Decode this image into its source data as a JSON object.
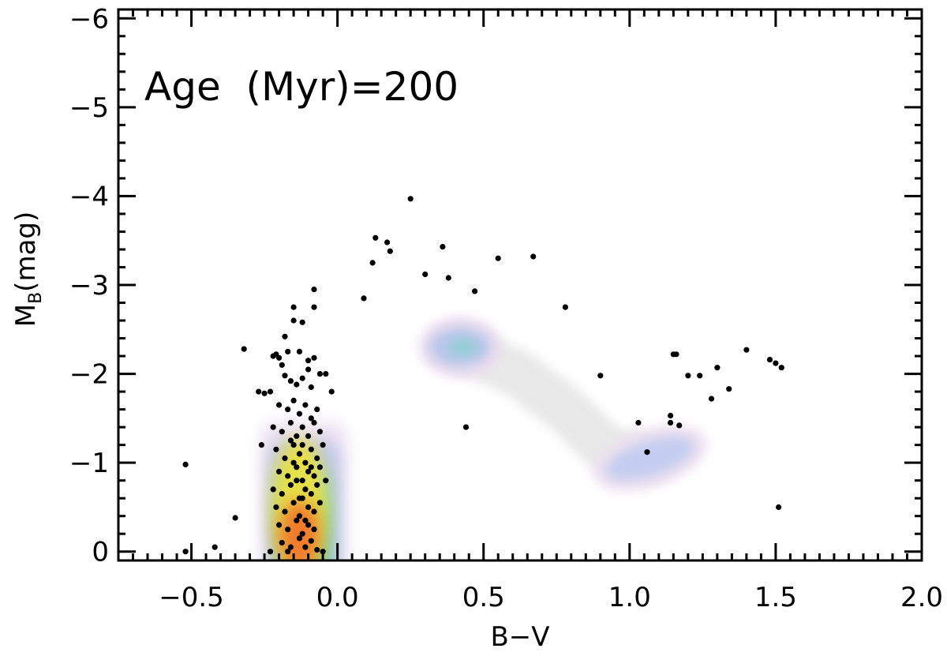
{
  "chart_data": {
    "type": "scatter",
    "title": "",
    "annotation": "Age  (Myr)=200",
    "xlabel": "B−V",
    "ylabel_main": "M",
    "ylabel_sub": "B",
    "ylabel_unit": "(mag)",
    "xlim": [
      -0.75,
      2.0
    ],
    "ylim": [
      0.1,
      -6.1
    ],
    "x_major_ticks": [
      -0.5,
      0.0,
      0.5,
      1.0,
      1.5,
      2.0
    ],
    "x_tick_labels": [
      "−0.5",
      "0.0",
      "0.5",
      "1.0",
      "1.5",
      "2.0"
    ],
    "y_major_ticks": [
      0,
      -1,
      -2,
      -3,
      -4,
      -5,
      -6
    ],
    "y_tick_labels": [
      "0",
      "−1",
      "−2",
      "−3",
      "−4",
      "−5",
      "−6"
    ],
    "density_regions": [
      {
        "name": "main-sequence",
        "x_range": [
          -0.26,
          0.03
        ],
        "y_range": [
          -1.45,
          0.1
        ],
        "peak_x": -0.13,
        "peak_y": -0.4,
        "intensity": 1.0
      },
      {
        "name": "blue-loop-upper",
        "center_x": 0.42,
        "center_y": -2.3,
        "intensity": 0.35
      },
      {
        "name": "blue-loop-lower",
        "center_x": 1.07,
        "center_y": -1.05,
        "intensity": 0.25
      },
      {
        "name": "hertzsprung-gap",
        "path_x": [
          0.42,
          0.62,
          0.78,
          0.92,
          1.07
        ],
        "path_y": [
          -2.3,
          -2.0,
          -1.6,
          -1.15,
          -1.05
        ],
        "intensity": 0.12
      }
    ],
    "series": [
      {
        "name": "stars",
        "points": [
          [
            -0.52,
            -0.98
          ],
          [
            -0.52,
            0.0
          ],
          [
            -0.42,
            -0.05
          ],
          [
            -0.35,
            -0.38
          ],
          [
            -0.32,
            -2.28
          ],
          [
            -0.27,
            -1.8
          ],
          [
            -0.25,
            -1.78
          ],
          [
            -0.23,
            -1.8
          ],
          [
            -0.26,
            -1.2
          ],
          [
            -0.22,
            -2.2
          ],
          [
            -0.21,
            -2.22
          ],
          [
            -0.2,
            -2.18
          ],
          [
            -0.19,
            -2.1
          ],
          [
            -0.18,
            -2.42
          ],
          [
            -0.17,
            -2.25
          ],
          [
            -0.15,
            -2.75
          ],
          [
            -0.15,
            -2.6
          ],
          [
            -0.13,
            -2.25
          ],
          [
            -0.12,
            -2.58
          ],
          [
            -0.1,
            -2.15
          ],
          [
            -0.08,
            -2.95
          ],
          [
            -0.08,
            -2.75
          ],
          [
            -0.08,
            -2.18
          ],
          [
            -0.06,
            -2.0
          ],
          [
            -0.04,
            -2.0
          ],
          [
            -0.02,
            -1.8
          ],
          [
            -0.04,
            -0.8
          ],
          [
            -0.18,
            -1.98
          ],
          [
            -0.16,
            -1.92
          ],
          [
            -0.14,
            -1.88
          ],
          [
            -0.12,
            -1.95
          ],
          [
            -0.1,
            -2.05
          ],
          [
            -0.09,
            -1.85
          ],
          [
            -0.2,
            -1.65
          ],
          [
            -0.17,
            -1.6
          ],
          [
            -0.15,
            -1.7
          ],
          [
            -0.13,
            -1.55
          ],
          [
            -0.11,
            -1.65
          ],
          [
            -0.09,
            -1.5
          ],
          [
            -0.07,
            -1.6
          ],
          [
            -0.22,
            -1.4
          ],
          [
            -0.19,
            -1.35
          ],
          [
            -0.16,
            -1.45
          ],
          [
            -0.14,
            -1.3
          ],
          [
            -0.12,
            -1.4
          ],
          [
            -0.1,
            -1.3
          ],
          [
            -0.08,
            -1.45
          ],
          [
            -0.06,
            -1.35
          ],
          [
            -0.21,
            -1.15
          ],
          [
            -0.18,
            -1.05
          ],
          [
            -0.15,
            -1.2
          ],
          [
            -0.13,
            -1.1
          ],
          [
            -0.11,
            -1.0
          ],
          [
            -0.09,
            -1.15
          ],
          [
            -0.07,
            -1.05
          ],
          [
            -0.05,
            -1.2
          ],
          [
            -0.2,
            -0.9
          ],
          [
            -0.17,
            -0.85
          ],
          [
            -0.14,
            -0.95
          ],
          [
            -0.12,
            -0.8
          ],
          [
            -0.1,
            -0.9
          ],
          [
            -0.08,
            -0.85
          ],
          [
            -0.06,
            -0.95
          ],
          [
            -0.22,
            -0.7
          ],
          [
            -0.19,
            -0.65
          ],
          [
            -0.16,
            -0.75
          ],
          [
            -0.13,
            -0.6
          ],
          [
            -0.11,
            -0.7
          ],
          [
            -0.09,
            -0.65
          ],
          [
            -0.07,
            -0.75
          ],
          [
            -0.21,
            -0.5
          ],
          [
            -0.18,
            -0.45
          ],
          [
            -0.15,
            -0.55
          ],
          [
            -0.13,
            -0.4
          ],
          [
            -0.1,
            -0.5
          ],
          [
            -0.08,
            -0.45
          ],
          [
            -0.06,
            -0.55
          ],
          [
            -0.2,
            -0.3
          ],
          [
            -0.17,
            -0.25
          ],
          [
            -0.14,
            -0.35
          ],
          [
            -0.12,
            -0.2
          ],
          [
            -0.1,
            -0.3
          ],
          [
            -0.08,
            -0.25
          ],
          [
            -0.19,
            -0.1
          ],
          [
            -0.16,
            -0.05
          ],
          [
            -0.13,
            -0.15
          ],
          [
            -0.11,
            -0.05
          ],
          [
            -0.09,
            -0.12
          ],
          [
            -0.07,
            -0.02
          ],
          [
            -0.17,
            0.0
          ],
          [
            -0.05,
            0.0
          ],
          [
            -0.23,
            0.0
          ],
          [
            -0.15,
            -1.0
          ],
          [
            -0.12,
            -0.6
          ],
          [
            -0.11,
            -0.35
          ],
          [
            -0.14,
            -0.8
          ],
          [
            -0.09,
            -0.95
          ],
          [
            -0.16,
            -1.25
          ],
          [
            -0.12,
            -1.2
          ],
          [
            0.09,
            -2.85
          ],
          [
            0.12,
            -3.25
          ],
          [
            0.13,
            -3.53
          ],
          [
            0.17,
            -3.48
          ],
          [
            0.18,
            -3.38
          ],
          [
            0.25,
            -3.97
          ],
          [
            0.3,
            -3.12
          ],
          [
            0.36,
            -3.43
          ],
          [
            0.38,
            -3.08
          ],
          [
            0.44,
            -1.4
          ],
          [
            0.47,
            -2.93
          ],
          [
            0.55,
            -3.3
          ],
          [
            0.67,
            -3.32
          ],
          [
            0.78,
            -2.75
          ],
          [
            0.9,
            -1.98
          ],
          [
            1.03,
            -1.45
          ],
          [
            1.06,
            -1.12
          ],
          [
            1.14,
            -1.53
          ],
          [
            1.14,
            -1.45
          ],
          [
            1.15,
            -2.22
          ],
          [
            1.16,
            -2.22
          ],
          [
            1.17,
            -1.42
          ],
          [
            1.2,
            -1.98
          ],
          [
            1.24,
            -1.98
          ],
          [
            1.28,
            -1.72
          ],
          [
            1.3,
            -2.07
          ],
          [
            1.34,
            -1.83
          ],
          [
            1.4,
            -2.27
          ],
          [
            1.48,
            -2.16
          ],
          [
            1.5,
            -2.12
          ],
          [
            1.52,
            -2.07
          ],
          [
            1.51,
            -0.5
          ]
        ]
      }
    ]
  }
}
